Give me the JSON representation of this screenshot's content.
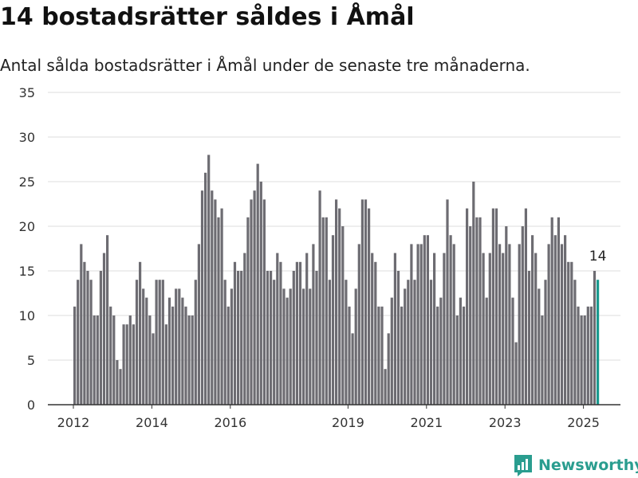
{
  "header": {
    "title": "14 bostadsrätter såldes i Åmål",
    "subtitle": "Antal sålda bostadsrätter i Åmål under de senaste tre månaderna."
  },
  "brand": {
    "name": "Newsworthy",
    "icon": "newsworthy-logo-icon",
    "color": "#2a9d8f"
  },
  "colors": {
    "bar": "#6d6c72",
    "highlight": "#1a9a8f",
    "grid": "#dddddd",
    "axis": "#333333"
  },
  "chart_data": {
    "type": "bar",
    "ylim": [
      0,
      35
    ],
    "yticks": [
      0,
      5,
      10,
      15,
      20,
      25,
      30,
      35
    ],
    "xticks": [
      {
        "label": "2012",
        "index": 0
      },
      {
        "label": "2014",
        "index": 24
      },
      {
        "label": "2016",
        "index": 48
      },
      {
        "label": "2019",
        "index": 84
      },
      {
        "label": "2021",
        "index": 108
      },
      {
        "label": "2023",
        "index": 132
      },
      {
        "label": "2025",
        "index": 156
      }
    ],
    "start": "2012-01",
    "values": [
      11,
      14,
      18,
      16,
      15,
      14,
      10,
      10,
      15,
      17,
      19,
      11,
      10,
      5,
      4,
      9,
      9,
      10,
      9,
      14,
      16,
      13,
      12,
      10,
      8,
      14,
      14,
      14,
      9,
      12,
      11,
      13,
      13,
      12,
      11,
      10,
      10,
      14,
      18,
      24,
      26,
      28,
      24,
      23,
      21,
      22,
      14,
      11,
      13,
      16,
      15,
      15,
      17,
      21,
      23,
      24,
      27,
      25,
      23,
      15,
      15,
      14,
      17,
      16,
      13,
      12,
      13,
      15,
      16,
      16,
      13,
      17,
      13,
      18,
      15,
      24,
      21,
      21,
      14,
      19,
      23,
      22,
      20,
      14,
      11,
      8,
      13,
      18,
      23,
      23,
      22,
      17,
      16,
      11,
      11,
      4,
      8,
      12,
      17,
      15,
      11,
      13,
      14,
      18,
      14,
      18,
      18,
      19,
      19,
      14,
      17,
      11,
      12,
      17,
      23,
      19,
      18,
      10,
      12,
      11,
      22,
      20,
      25,
      21,
      21,
      17,
      12,
      17,
      22,
      22,
      18,
      17,
      20,
      18,
      12,
      7,
      18,
      20,
      22,
      15,
      19,
      17,
      13,
      10,
      14,
      18,
      21,
      19,
      21,
      18,
      19,
      16,
      16,
      14,
      11,
      10,
      10,
      11,
      11,
      15,
      14
    ],
    "highlight_last": true,
    "last_label": "14"
  }
}
